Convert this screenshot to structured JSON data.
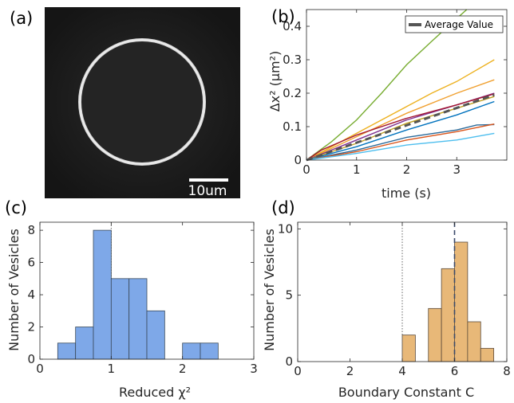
{
  "panels": {
    "a": {
      "label": "(a)",
      "scale_bar": "10um"
    },
    "b": {
      "label": "(b)"
    },
    "c": {
      "label": "(c)"
    },
    "d": {
      "label": "(d)"
    }
  },
  "chart_data": [
    {
      "panel": "b",
      "type": "line",
      "xlabel": "time (s)",
      "ylabel": "Δx² (μm²)",
      "xlim": [
        0,
        4
      ],
      "ylim": [
        0,
        0.45
      ],
      "xticks": [
        "0",
        "1",
        "2",
        "3"
      ],
      "yticks": [
        "0",
        "0.1",
        "0.2",
        "0.3",
        "0.4"
      ],
      "legend": {
        "position": "top-right",
        "entries": [
          "Average Value"
        ]
      },
      "average": {
        "name": "Average Value",
        "color": "#555555",
        "style": "dashed",
        "x": [
          0,
          3.75
        ],
        "y": [
          0,
          0.195
        ]
      },
      "series": [
        {
          "color": "#77ac30",
          "x": [
            0,
            0.5,
            1,
            1.5,
            2,
            2.5,
            2.9,
            3.2
          ],
          "y": [
            0,
            0.055,
            0.12,
            0.2,
            0.285,
            0.355,
            0.41,
            0.45
          ]
        },
        {
          "color": "#edb120",
          "x": [
            0,
            1,
            2,
            2.5,
            3,
            3.75
          ],
          "y": [
            0,
            0.08,
            0.16,
            0.2,
            0.235,
            0.3
          ]
        },
        {
          "color": "#f0a030",
          "x": [
            0,
            1,
            2,
            3,
            3.75
          ],
          "y": [
            0,
            0.07,
            0.14,
            0.2,
            0.24
          ]
        },
        {
          "color": "#7e2f8e",
          "x": [
            0,
            1,
            2,
            3,
            3.75
          ],
          "y": [
            0,
            0.06,
            0.12,
            0.165,
            0.2
          ]
        },
        {
          "color": "#a2142f",
          "x": [
            0,
            0.3,
            1,
            2,
            3,
            3.75
          ],
          "y": [
            0,
            0.03,
            0.075,
            0.125,
            0.165,
            0.198
          ]
        },
        {
          "color": "#c0a020",
          "x": [
            0,
            1,
            2,
            3,
            3.75
          ],
          "y": [
            0,
            0.05,
            0.11,
            0.155,
            0.19
          ]
        },
        {
          "color": "#0072bd",
          "x": [
            0,
            1,
            2,
            3,
            3.75
          ],
          "y": [
            0,
            0.04,
            0.09,
            0.135,
            0.175
          ]
        },
        {
          "color": "#2a6a9a",
          "x": [
            0,
            1,
            2,
            3,
            3.4,
            3.75
          ],
          "y": [
            0,
            0.03,
            0.068,
            0.09,
            0.105,
            0.106
          ]
        },
        {
          "color": "#d95319",
          "x": [
            0,
            1,
            2,
            3,
            3.75
          ],
          "y": [
            0,
            0.025,
            0.06,
            0.085,
            0.108
          ]
        },
        {
          "color": "#4dbeee",
          "x": [
            0,
            1,
            2,
            3,
            3.75
          ],
          "y": [
            0,
            0.02,
            0.045,
            0.06,
            0.08
          ]
        }
      ]
    },
    {
      "panel": "c",
      "type": "bar",
      "xlabel": "Reduced χ²",
      "ylabel": "Number of Vesicles",
      "xlim": [
        0,
        3
      ],
      "ylim": [
        0,
        8.5
      ],
      "xticks": [
        "0",
        "1",
        "2",
        "3"
      ],
      "yticks": [
        "0",
        "2",
        "4",
        "6",
        "8"
      ],
      "bin_width": 0.25,
      "bin_starts": [
        0.25,
        0.5,
        0.75,
        1.0,
        1.25,
        1.5,
        1.75,
        2.0,
        2.25
      ],
      "values": [
        1,
        2,
        8,
        5,
        5,
        3,
        0,
        1,
        1
      ],
      "color": "#7ea8e8",
      "reference_line": {
        "x": 1.0,
        "style": "dotted"
      }
    },
    {
      "panel": "d",
      "type": "bar",
      "xlabel": "Boundary Constant C",
      "ylabel": "Number of Vesicles",
      "xlim": [
        0,
        8
      ],
      "ylim": [
        0,
        10.5
      ],
      "xticks": [
        "0",
        "2",
        "4",
        "6",
        "8"
      ],
      "yticks": [
        "0",
        "5",
        "10"
      ],
      "bin_width": 0.5,
      "bin_starts": [
        4.0,
        4.5,
        5.0,
        5.5,
        6.0,
        6.5,
        7.0
      ],
      "values": [
        2,
        0,
        4,
        7,
        9,
        3,
        1
      ],
      "color": "#e8b878",
      "reference_lines": [
        {
          "x": 4.0,
          "style": "dotted"
        },
        {
          "x": 6.0,
          "style": "dashed"
        }
      ]
    }
  ]
}
